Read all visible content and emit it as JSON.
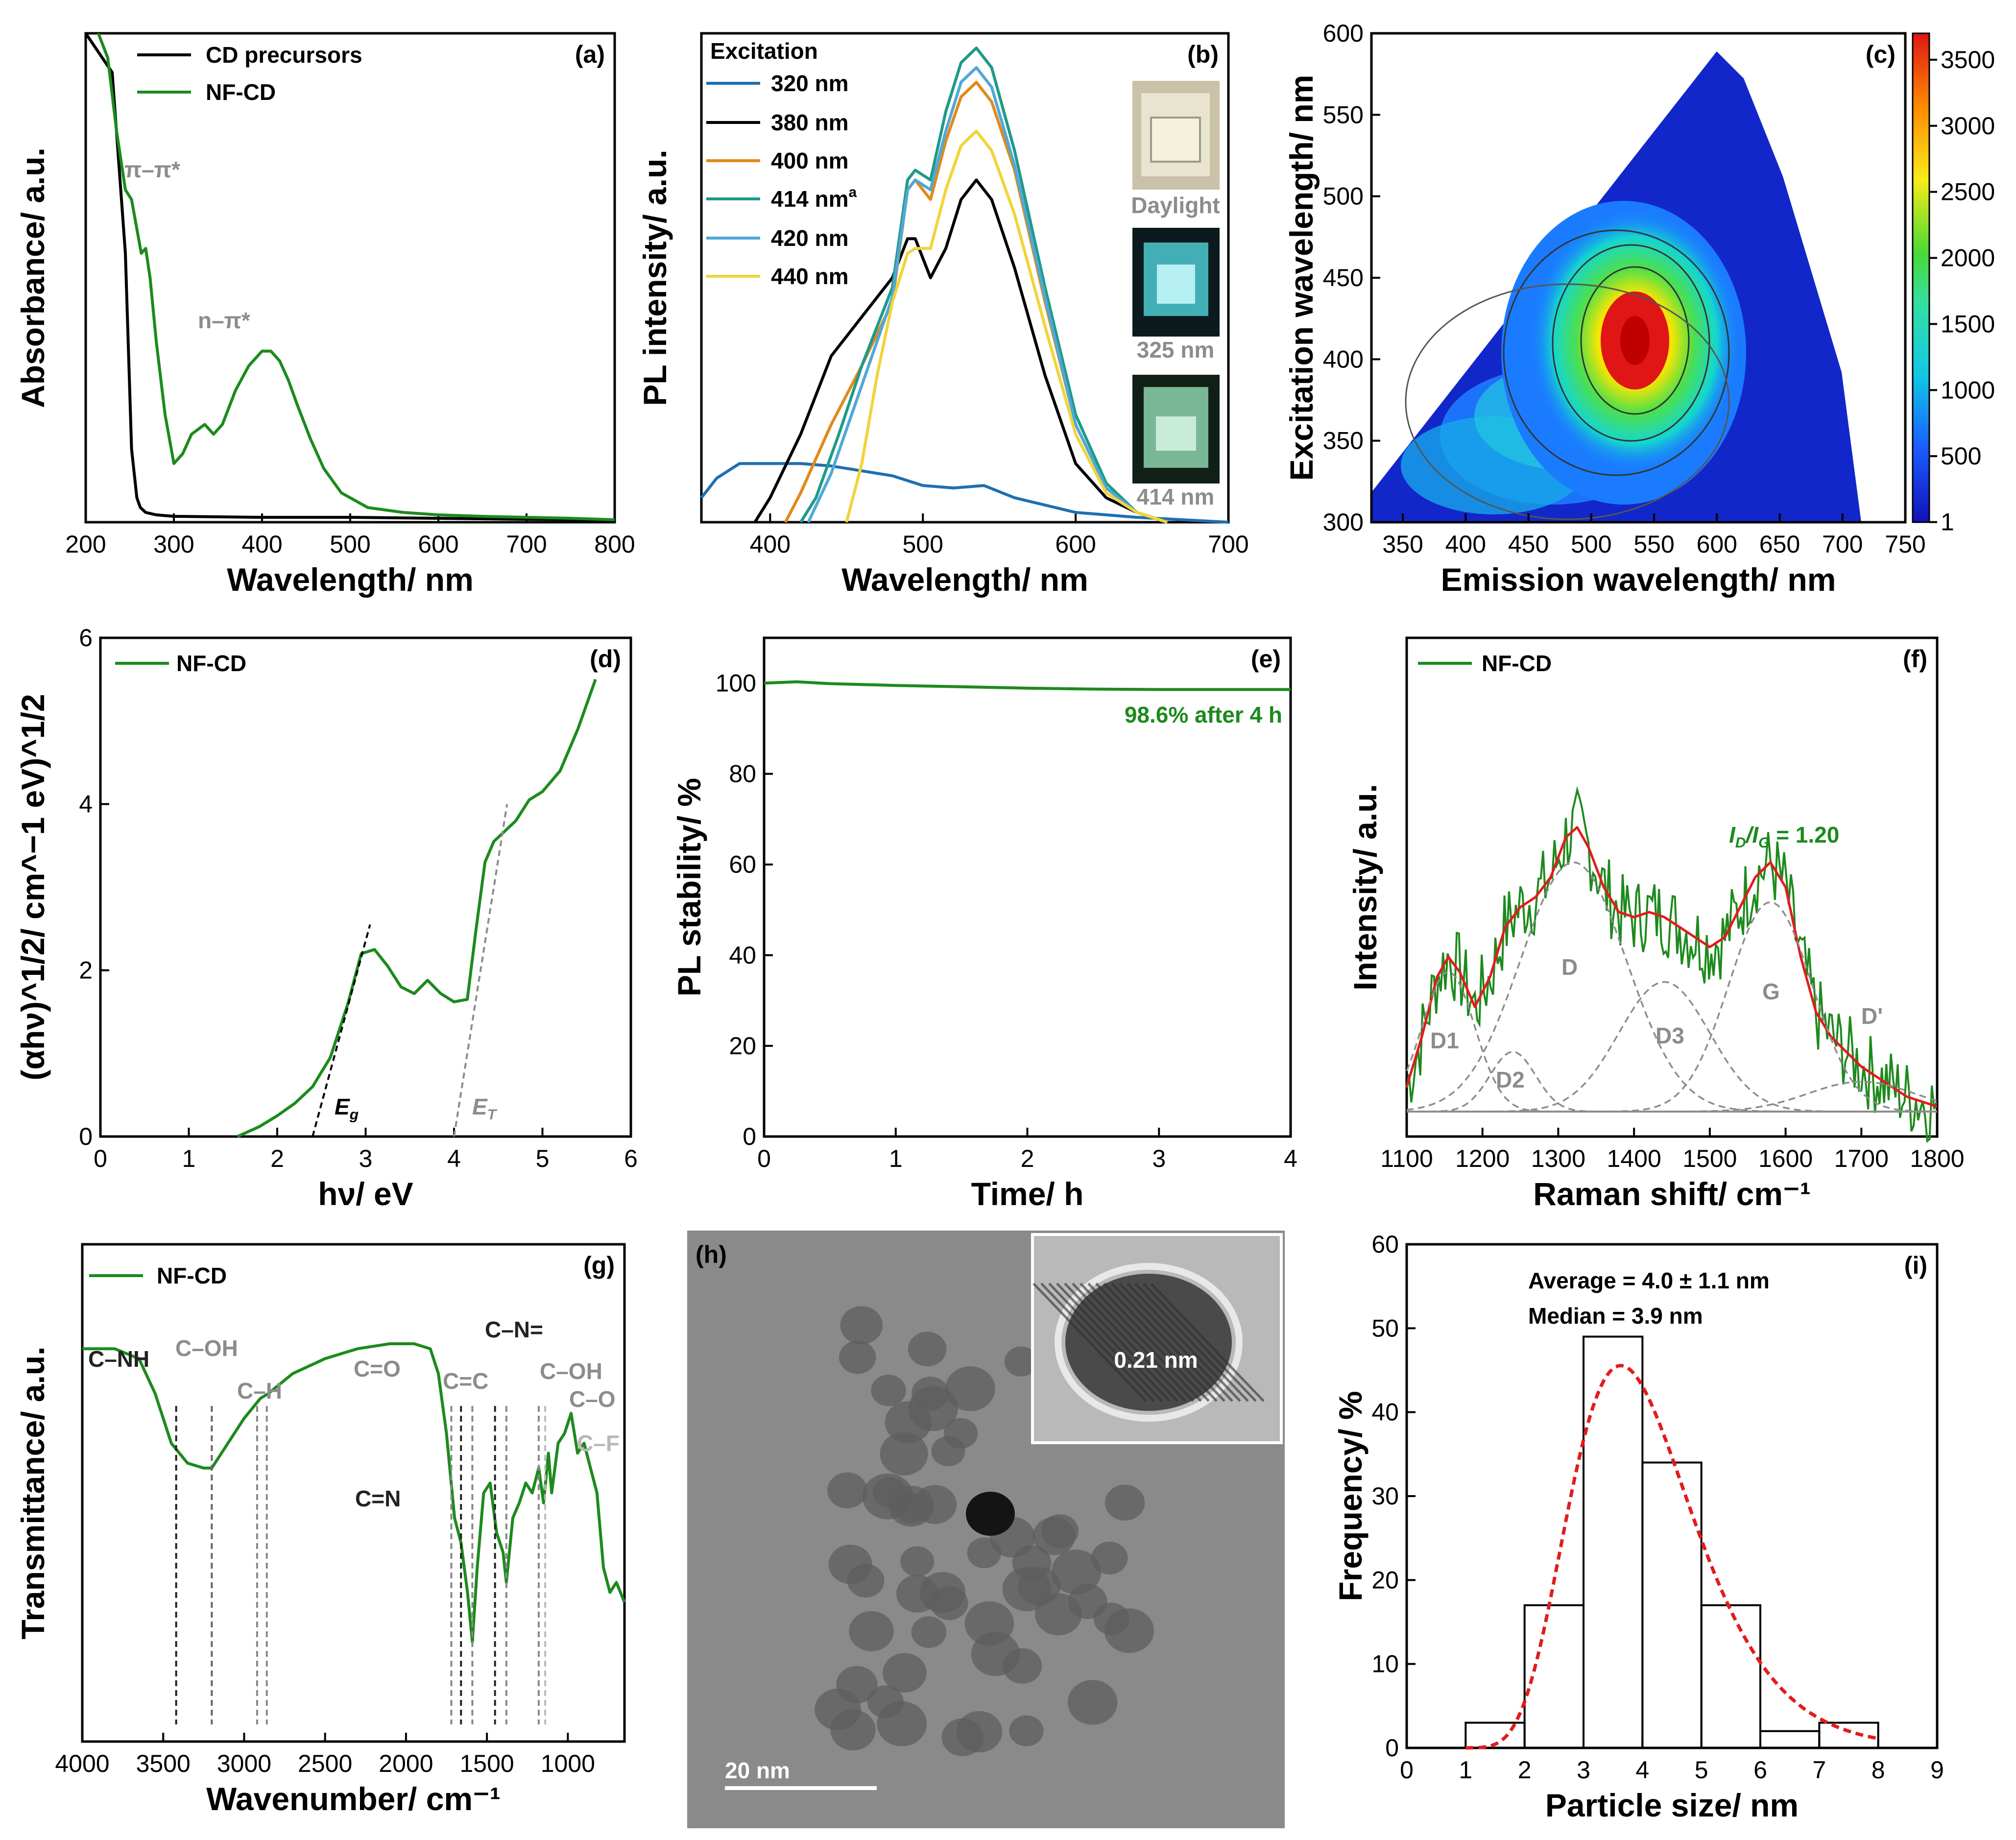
{
  "colors": {
    "green": "#1d8a1d",
    "black": "#000000",
    "grey": "#8c8c8c",
    "red": "#e21c1c",
    "blue320": "#1f6fb0",
    "orange400": "#e08a1c",
    "teal414": "#1f9a8a",
    "lightblue420": "#4fa8d8",
    "yellow440": "#f0d43a"
  },
  "chart_data": [
    {
      "id": "a",
      "type": "line",
      "panel_label": "(a)",
      "xlabel": "Wavelength/ nm",
      "ylabel": "Absorbance/ a.u.",
      "xlim": [
        200,
        800
      ],
      "ylim": [
        0,
        1
      ],
      "xticks": [
        "200",
        "300",
        "400",
        "500",
        "600",
        "700",
        "800"
      ],
      "series": [
        {
          "name": "CD precursors",
          "x": [
            200,
            230,
            245,
            252,
            258,
            262,
            268,
            280,
            300,
            400,
            500,
            600,
            700,
            800
          ],
          "y": [
            1.0,
            0.92,
            0.55,
            0.15,
            0.05,
            0.03,
            0.02,
            0.015,
            0.012,
            0.01,
            0.01,
            0.008,
            0.006,
            0.005
          ]
        },
        {
          "name": "NF-CD",
          "x": [
            210,
            225,
            235,
            245,
            252,
            258,
            263,
            268,
            273,
            280,
            290,
            300,
            310,
            320,
            335,
            345,
            355,
            370,
            385,
            400,
            410,
            420,
            430,
            440,
            455,
            470,
            490,
            520,
            560,
            600,
            650,
            700,
            750,
            800
          ],
          "y": [
            1.02,
            0.95,
            0.8,
            0.68,
            0.66,
            0.6,
            0.55,
            0.56,
            0.5,
            0.37,
            0.22,
            0.12,
            0.14,
            0.18,
            0.2,
            0.18,
            0.2,
            0.27,
            0.32,
            0.35,
            0.35,
            0.33,
            0.29,
            0.24,
            0.17,
            0.11,
            0.06,
            0.03,
            0.02,
            0.015,
            0.012,
            0.01,
            0.008,
            0.005
          ]
        }
      ],
      "annotations": [
        "π–π*",
        "n–π*"
      ]
    },
    {
      "id": "b",
      "type": "line",
      "panel_label": "(b)",
      "xlabel": "Wavelength/ nm",
      "ylabel": "PL intensity/ a.u.",
      "xlim": [
        355,
        700
      ],
      "ylim": [
        0,
        1
      ],
      "xticks": [
        "400",
        "500",
        "600",
        "700"
      ],
      "legend_title": "Excitation",
      "series": [
        {
          "name": "320 nm",
          "x": [
            355,
            365,
            380,
            400,
            420,
            440,
            460,
            480,
            500,
            520,
            540,
            560,
            600,
            640,
            700
          ],
          "y": [
            0.05,
            0.09,
            0.12,
            0.12,
            0.12,
            0.115,
            0.105,
            0.095,
            0.075,
            0.07,
            0.075,
            0.05,
            0.02,
            0.01,
            0.0
          ]
        },
        {
          "name": "380 nm",
          "x": [
            390,
            400,
            420,
            440,
            460,
            480,
            490,
            495,
            505,
            515,
            525,
            535,
            545,
            560,
            580,
            600,
            620,
            640,
            660
          ],
          "y": [
            0.0,
            0.05,
            0.18,
            0.34,
            0.42,
            0.5,
            0.58,
            0.58,
            0.5,
            0.56,
            0.66,
            0.7,
            0.66,
            0.52,
            0.3,
            0.12,
            0.05,
            0.02,
            0.0
          ]
        },
        {
          "name": "400 nm",
          "x": [
            410,
            420,
            440,
            460,
            480,
            490,
            495,
            505,
            515,
            525,
            535,
            545,
            560,
            580,
            600,
            620,
            640,
            660
          ],
          "y": [
            0.0,
            0.06,
            0.2,
            0.32,
            0.45,
            0.68,
            0.7,
            0.66,
            0.78,
            0.87,
            0.9,
            0.86,
            0.72,
            0.45,
            0.2,
            0.07,
            0.02,
            0.0
          ]
        },
        {
          "name": "414 nm",
          "x": [
            420,
            430,
            445,
            460,
            480,
            490,
            495,
            505,
            515,
            525,
            535,
            545,
            560,
            580,
            600,
            620,
            640,
            660
          ],
          "y": [
            0.0,
            0.05,
            0.18,
            0.32,
            0.48,
            0.7,
            0.72,
            0.7,
            0.84,
            0.94,
            0.97,
            0.93,
            0.76,
            0.48,
            0.22,
            0.08,
            0.02,
            0.0
          ]
        },
        {
          "name": "420 nm",
          "x": [
            425,
            440,
            460,
            480,
            490,
            495,
            505,
            515,
            525,
            535,
            545,
            560,
            580,
            600,
            620,
            640,
            660
          ],
          "y": [
            0.0,
            0.1,
            0.28,
            0.46,
            0.68,
            0.7,
            0.68,
            0.8,
            0.9,
            0.93,
            0.89,
            0.73,
            0.46,
            0.2,
            0.07,
            0.02,
            0.0
          ]
        },
        {
          "name": "440 nm",
          "x": [
            450,
            460,
            470,
            480,
            490,
            495,
            505,
            515,
            525,
            535,
            545,
            560,
            580,
            600,
            620,
            640,
            660
          ],
          "y": [
            0.0,
            0.12,
            0.3,
            0.45,
            0.55,
            0.56,
            0.56,
            0.68,
            0.77,
            0.8,
            0.76,
            0.63,
            0.4,
            0.18,
            0.06,
            0.02,
            0.0
          ]
        }
      ],
      "photo_labels": [
        "Daylight",
        "325 nm",
        "414 nm"
      ]
    },
    {
      "id": "c",
      "type": "heatmap",
      "panel_label": "(c)",
      "xlabel": "Emission wavelength/ nm",
      "ylabel": "Excitation wavelength/ nm",
      "xlim": [
        325,
        750
      ],
      "ylim": [
        300,
        600
      ],
      "xticks": [
        "350",
        "400",
        "450",
        "500",
        "550",
        "600",
        "650",
        "700",
        "750"
      ],
      "yticks": [
        "300",
        "350",
        "400",
        "450",
        "500",
        "550",
        "600"
      ],
      "colorbar_ticks": [
        "1",
        "500",
        "1000",
        "1500",
        "2000",
        "2500",
        "3000",
        "3500"
      ],
      "peak": {
        "emission": 533,
        "excitation": 412,
        "intensity": 3650
      }
    },
    {
      "id": "d",
      "type": "line",
      "panel_label": "(d)",
      "xlabel": "hν/ eV",
      "ylabel": "(αhν)^1/2/ cm^−1 eV)^1/2",
      "xlim": [
        0,
        6
      ],
      "ylim": [
        0,
        6
      ],
      "xticks": [
        "0",
        "1",
        "2",
        "3",
        "4",
        "5",
        "6"
      ],
      "yticks": [
        "0",
        "2",
        "4",
        "6"
      ],
      "series": [
        {
          "name": "NF-CD",
          "x": [
            1.55,
            1.8,
            2.0,
            2.2,
            2.4,
            2.6,
            2.8,
            2.95,
            3.1,
            3.25,
            3.4,
            3.55,
            3.7,
            3.85,
            4.0,
            4.15,
            4.25,
            4.35,
            4.45,
            4.55,
            4.7,
            4.85,
            5.0,
            5.2,
            5.4,
            5.6
          ],
          "y": [
            0.0,
            0.12,
            0.25,
            0.4,
            0.6,
            0.95,
            1.6,
            2.2,
            2.25,
            2.05,
            1.8,
            1.72,
            1.88,
            1.72,
            1.62,
            1.65,
            2.5,
            3.3,
            3.55,
            3.65,
            3.8,
            4.05,
            4.15,
            4.4,
            4.9,
            5.5
          ]
        }
      ],
      "fit_lines": [
        {
          "label": "Eg",
          "x_intercept": 2.4
        },
        {
          "label": "ET",
          "x_intercept": 4.0
        }
      ]
    },
    {
      "id": "e",
      "type": "line",
      "panel_label": "(e)",
      "xlabel": "Time/ h",
      "ylabel": "PL stability/ %",
      "xlim": [
        0,
        4
      ],
      "ylim": [
        0,
        110
      ],
      "xticks": [
        "0",
        "1",
        "2",
        "3",
        "4"
      ],
      "yticks": [
        "0",
        "20",
        "40",
        "60",
        "80",
        "100"
      ],
      "series": [
        {
          "name": "PL stability",
          "x": [
            0,
            0.25,
            0.5,
            1,
            1.5,
            2,
            2.5,
            3,
            3.5,
            4
          ],
          "y": [
            100,
            100.3,
            99.9,
            99.5,
            99.2,
            98.9,
            98.7,
            98.6,
            98.6,
            98.6
          ]
        }
      ],
      "annotation": "98.6% after 4 h"
    },
    {
      "id": "f",
      "type": "line",
      "panel_label": "(f)",
      "xlabel": "Raman shift/ cm⁻¹",
      "ylabel": "Intensity/ a.u.",
      "xlim": [
        1100,
        1800
      ],
      "ylim": [
        0,
        1
      ],
      "xticks": [
        "1100",
        "1200",
        "1300",
        "1400",
        "1500",
        "1600",
        "1700",
        "1800"
      ],
      "series": [
        {
          "name": "NF-CD",
          "x": [
            1100,
            1120,
            1140,
            1155,
            1170,
            1190,
            1210,
            1230,
            1250,
            1270,
            1290,
            1310,
            1325,
            1340,
            1360,
            1380,
            1400,
            1420,
            1440,
            1460,
            1480,
            1500,
            1520,
            1540,
            1560,
            1580,
            1600,
            1620,
            1640,
            1660,
            1680,
            1700,
            1720,
            1740,
            1760,
            1780,
            1800
          ],
          "y": [
            0.1,
            0.2,
            0.32,
            0.36,
            0.33,
            0.26,
            0.32,
            0.42,
            0.46,
            0.48,
            0.52,
            0.6,
            0.62,
            0.58,
            0.5,
            0.45,
            0.44,
            0.45,
            0.44,
            0.42,
            0.4,
            0.38,
            0.4,
            0.46,
            0.52,
            0.55,
            0.5,
            0.36,
            0.25,
            0.2,
            0.17,
            0.14,
            0.12,
            0.1,
            0.08,
            0.07,
            0.06
          ]
        }
      ],
      "peaks": [
        "D1",
        "D2",
        "D",
        "D3",
        "G",
        "D'"
      ],
      "annotation": "ID/IG = 1.20"
    },
    {
      "id": "g",
      "type": "line",
      "panel_label": "(g)",
      "xlabel": "Wavenumber/ cm⁻¹",
      "ylabel": "Transmittance/ a.u.",
      "xlim": [
        4000,
        650
      ],
      "ylim": [
        0,
        1
      ],
      "xticks": [
        "4000",
        "3500",
        "3000",
        "2500",
        "2000",
        "1500",
        "1000"
      ],
      "series": [
        {
          "name": "NF-CD",
          "x": [
            4000,
            3800,
            3650,
            3550,
            3450,
            3350,
            3250,
            3200,
            3100,
            3000,
            2900,
            2850,
            2700,
            2500,
            2300,
            2100,
            1950,
            1850,
            1800,
            1750,
            1700,
            1660,
            1620,
            1590,
            1560,
            1520,
            1480,
            1440,
            1400,
            1380,
            1340,
            1300,
            1260,
            1220,
            1180,
            1150,
            1120,
            1100,
            1060,
            1020,
            980,
            940,
            900,
            860,
            820,
            780,
            740,
            700,
            650
          ],
          "y": [
            0.79,
            0.79,
            0.77,
            0.7,
            0.6,
            0.56,
            0.55,
            0.55,
            0.6,
            0.65,
            0.69,
            0.7,
            0.74,
            0.77,
            0.79,
            0.8,
            0.8,
            0.79,
            0.74,
            0.62,
            0.45,
            0.4,
            0.3,
            0.2,
            0.35,
            0.5,
            0.52,
            0.42,
            0.38,
            0.32,
            0.45,
            0.48,
            0.52,
            0.5,
            0.55,
            0.48,
            0.58,
            0.5,
            0.6,
            0.62,
            0.66,
            0.58,
            0.6,
            0.55,
            0.5,
            0.35,
            0.3,
            0.32,
            0.28
          ]
        }
      ],
      "band_labels": [
        "C–NH",
        "C–OH",
        "C–H",
        "C=O",
        "C=C",
        "C–N=",
        "C–OH",
        "C–O",
        "C–F",
        "C=N"
      ]
    },
    {
      "id": "i",
      "type": "bar",
      "panel_label": "(i)",
      "xlabel": "Particle size/ nm",
      "ylabel": "Frequency/ %",
      "xlim": [
        0,
        9
      ],
      "ylim": [
        0,
        60
      ],
      "xticks": [
        "0",
        "1",
        "2",
        "3",
        "4",
        "5",
        "6",
        "7",
        "8",
        "9"
      ],
      "yticks": [
        "0",
        "10",
        "20",
        "30",
        "40",
        "50",
        "60"
      ],
      "bins": [
        [
          1,
          2
        ],
        [
          2,
          3
        ],
        [
          3,
          4
        ],
        [
          4,
          5
        ],
        [
          5,
          6
        ],
        [
          6,
          7
        ],
        [
          7,
          8
        ]
      ],
      "values": [
        3,
        17,
        49,
        34,
        17,
        2,
        3
      ],
      "fit": {
        "type": "lognormal",
        "peak_x": 3.8,
        "peak_y": 45
      },
      "stats": [
        "Average = 4.0 ± 1.1 nm",
        "Median = 3.9 nm"
      ]
    }
  ],
  "panel_a": {
    "legend": [
      "CD precursors",
      "NF-CD"
    ],
    "label_pi": "π–π*",
    "label_n": "n–π*"
  },
  "panel_b": {
    "legend_title": "Excitation",
    "legend": [
      "320 nm",
      "380 nm",
      "400 nm",
      "414 nm",
      "420 nm",
      "440 nm"
    ],
    "sup_414": "a",
    "photos": [
      "Daylight",
      "325 nm",
      "414 nm"
    ]
  },
  "panel_d": {
    "legend": "NF-CD",
    "eg": "E",
    "eg_sub": "g",
    "et": "E",
    "et_sub": "T"
  },
  "panel_e": {
    "note": "98.6% after 4 h"
  },
  "panel_f": {
    "legend": "NF-CD",
    "ratio_I": "I",
    "ratio_D": "D",
    "ratio_sep": "/",
    "ratio_G": "G",
    "ratio_val": " = 1.20",
    "peak_D1": "D1",
    "peak_D2": "D2",
    "peak_D": "D",
    "peak_D3": "D3",
    "peak_G": "G",
    "peak_Dp": "D'"
  },
  "panel_g": {
    "legend": "NF-CD",
    "bands": {
      "cnh": "C–NH",
      "coh1": "C–OH",
      "ch": "C–H",
      "co_d": "C=O",
      "cc": "C=C",
      "cn_eq": "C–N=",
      "coh2": "C–OH",
      "co": "C–O",
      "cf": "C–F",
      "cn": "C=N"
    }
  },
  "panel_h": {
    "label": "(h)",
    "scale_bar": "20 nm",
    "inset_label": "0.21 nm"
  },
  "panel_i": {
    "average": "Average = 4.0 ± 1.1 nm",
    "median": "Median = 3.9 nm"
  }
}
